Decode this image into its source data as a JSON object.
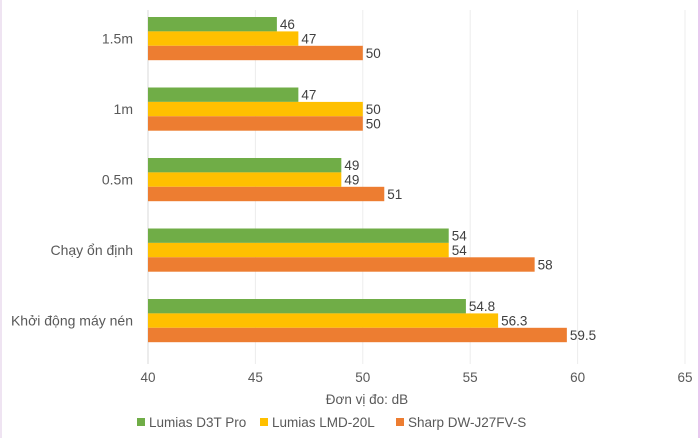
{
  "chart_data": {
    "type": "bar",
    "orientation": "horizontal",
    "title": "",
    "xlabel": "Đơn vị đo: dB",
    "ylabel": "",
    "xlim": [
      40,
      65
    ],
    "xticks": [
      40,
      45,
      50,
      55,
      60,
      65
    ],
    "grid": true,
    "legend_position": "bottom",
    "categories": [
      "1.5m",
      "1m",
      "0.5m",
      "Chạy ổn định",
      "Khởi động máy nén"
    ],
    "series": [
      {
        "name": "Lumias D3T Pro",
        "color": "#70ad47",
        "values": [
          46,
          47,
          49,
          54,
          54.8
        ]
      },
      {
        "name": "Lumias LMD-20L",
        "color": "#ffc000",
        "values": [
          47,
          50,
          49,
          54,
          56.3
        ]
      },
      {
        "name": "Sharp DW-J27FV-S",
        "color": "#ed7d31",
        "values": [
          50,
          50,
          51,
          58,
          59.5
        ]
      }
    ],
    "data_labels": [
      [
        "46",
        "47",
        "49",
        "54",
        "54.8"
      ],
      [
        "47",
        "50",
        "49",
        "54",
        "56.3"
      ],
      [
        "50",
        "50",
        "51",
        "58",
        "59.5"
      ]
    ]
  }
}
